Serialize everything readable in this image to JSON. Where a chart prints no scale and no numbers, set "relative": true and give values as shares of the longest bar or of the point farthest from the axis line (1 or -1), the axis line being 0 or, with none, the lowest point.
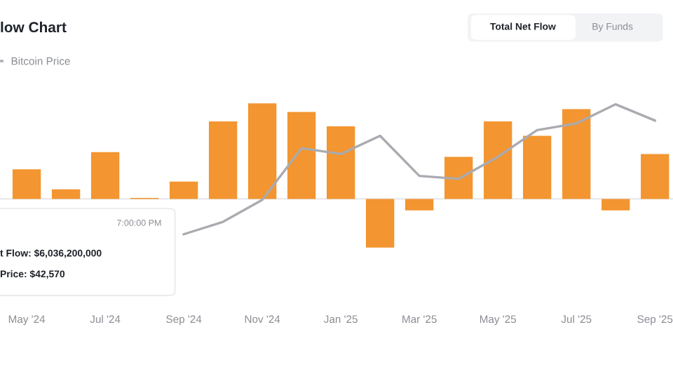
{
  "chart_data": {
    "type": "bar",
    "title": "low Chart",
    "relative": true,
    "tick_labels": "x",
    "grid": false,
    "legend": "top left",
    "categories": [
      "May '24",
      null,
      "Jul '24",
      null,
      "Sep '24",
      null,
      "Nov '24",
      null,
      "Jan '25",
      null,
      "Mar '25",
      null,
      "May '25",
      null,
      "Jul '25",
      null,
      "Sep '25"
    ],
    "series": [
      {
        "color": "#f39530",
        "values": [
          0.31,
          0.1,
          0.49,
          0.01,
          0.18,
          0.81,
          1,
          0.91,
          0.76,
          -0.51,
          -0.12,
          0.44,
          0.81,
          0.66,
          0.94,
          -0.12,
          0.47
        ]
      },
      {
        "type": "line",
        "name": "Bitcoin Price",
        "color": "#a9abb0",
        "values": [
          null,
          null,
          null,
          null,
          -0.37,
          -0.24,
          -0.01,
          0.53,
          0.47,
          0.66,
          0.24,
          0.21,
          0.44,
          0.72,
          0.79,
          0.99,
          0.82
        ]
      }
    ],
    "annotations": [
      "Total Net Flow",
      "By Funds",
      "7:00:00 PM",
      "t Flow: $6,036,200,000",
      "Price: $42,570"
    ]
  }
}
